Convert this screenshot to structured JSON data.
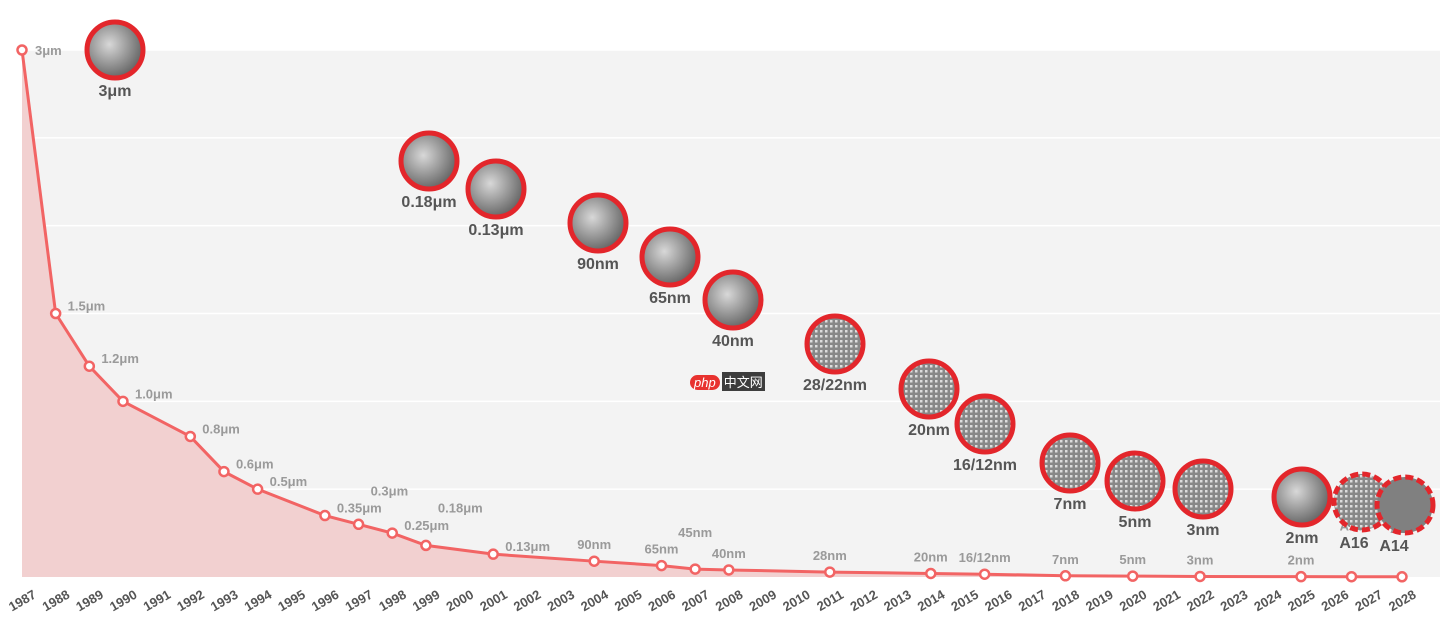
{
  "chart_data": {
    "type": "area",
    "title": "",
    "xlabel": "",
    "ylabel": "",
    "xlim": [
      1987,
      2028
    ],
    "ylim_nm": [
      0,
      3000
    ],
    "grid": true,
    "y_gridlines_nm": [
      500,
      1000,
      1500,
      2000,
      2500,
      3000
    ],
    "colors": {
      "line": "#f26464",
      "fill": "#f2d0d0",
      "plot_bg": "#f3f3f3",
      "bubble_ring": "#e3262b",
      "label": "#9a9a9a",
      "bubble_label": "#555555"
    },
    "x_ticks": [
      1987,
      1988,
      1989,
      1990,
      1991,
      1992,
      1993,
      1994,
      1995,
      1996,
      1997,
      1998,
      1999,
      2000,
      2001,
      2002,
      2003,
      2004,
      2005,
      2006,
      2007,
      2008,
      2009,
      2010,
      2011,
      2012,
      2013,
      2014,
      2015,
      2016,
      2017,
      2018,
      2019,
      2020,
      2021,
      2022,
      2023,
      2024,
      2025,
      2026,
      2027,
      2028
    ],
    "points": [
      {
        "year": 1987,
        "value_nm": 3000,
        "label": "3μm"
      },
      {
        "year": 1988,
        "value_nm": 1500,
        "label": "1.5μm"
      },
      {
        "year": 1989,
        "value_nm": 1200,
        "label": "1.2μm"
      },
      {
        "year": 1990,
        "value_nm": 1000,
        "label": "1.0μm"
      },
      {
        "year": 1992,
        "value_nm": 800,
        "label": "0.8μm"
      },
      {
        "year": 1993,
        "value_nm": 600,
        "label": "0.6μm"
      },
      {
        "year": 1994,
        "value_nm": 500,
        "label": "0.5μm"
      },
      {
        "year": 1996,
        "value_nm": 350,
        "label": "0.35μm"
      },
      {
        "year": 1997,
        "value_nm": 300,
        "label": "0.3μm"
      },
      {
        "year": 1998,
        "value_nm": 250,
        "label": "0.25μm"
      },
      {
        "year": 1999,
        "value_nm": 180,
        "label": "0.18μm"
      },
      {
        "year": 2001,
        "value_nm": 130,
        "label": "0.13μm"
      },
      {
        "year": 2004,
        "value_nm": 90,
        "label": "90nm"
      },
      {
        "year": 2006,
        "value_nm": 65,
        "label": "65nm"
      },
      {
        "year": 2007,
        "value_nm": 45,
        "label": "45nm"
      },
      {
        "year": 2008,
        "value_nm": 40,
        "label": "40nm"
      },
      {
        "year": 2011,
        "value_nm": 28,
        "label": "28nm"
      },
      {
        "year": 2014,
        "value_nm": 20,
        "label": "20nm"
      },
      {
        "year": 2015.6,
        "value_nm": 16,
        "label": "16/12nm"
      },
      {
        "year": 2018,
        "value_nm": 7,
        "label": "7nm"
      },
      {
        "year": 2020,
        "value_nm": 5,
        "label": "5nm"
      },
      {
        "year": 2022,
        "value_nm": 3,
        "label": "3nm"
      },
      {
        "year": 2025,
        "value_nm": 2,
        "label": "2nm"
      },
      {
        "year": 2026.5,
        "value_nm": 1.6,
        "label": "A16"
      },
      {
        "year": 2028,
        "value_nm": 1.4,
        "label": "A14"
      }
    ],
    "bubbles": [
      {
        "label": "3μm",
        "style": "solid"
      },
      {
        "label": "0.18μm",
        "style": "solid"
      },
      {
        "label": "0.13μm",
        "style": "solid"
      },
      {
        "label": "90nm",
        "style": "solid"
      },
      {
        "label": "65nm",
        "style": "solid"
      },
      {
        "label": "40nm",
        "style": "solid"
      },
      {
        "label": "28/22nm",
        "style": "solid"
      },
      {
        "label": "20nm",
        "style": "solid"
      },
      {
        "label": "16/12nm",
        "style": "solid"
      },
      {
        "label": "7nm",
        "style": "solid"
      },
      {
        "label": "5nm",
        "style": "solid"
      },
      {
        "label": "3nm",
        "style": "solid"
      },
      {
        "label": "2nm",
        "style": "solid"
      },
      {
        "label": "A16",
        "style": "dashed"
      },
      {
        "label": "A14",
        "style": "dashed"
      }
    ]
  },
  "watermark": {
    "logo": "php",
    "text": "中文网"
  }
}
